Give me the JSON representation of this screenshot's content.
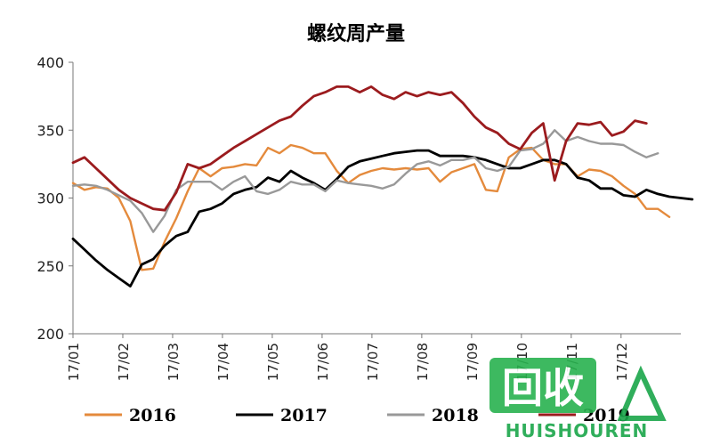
{
  "chart_data": {
    "type": "line",
    "title": "螺纹周产量",
    "xlabel": "",
    "ylabel": "",
    "ylim": [
      200,
      400
    ],
    "yticks": [
      200,
      250,
      300,
      350,
      400
    ],
    "xticks": [
      "17/01",
      "17/02",
      "17/03",
      "17/04",
      "17/05",
      "17/06",
      "17/07",
      "17/08",
      "17/09",
      "17/10",
      "17/11",
      "17/12"
    ],
    "x_unit": "week",
    "legend_position": "bottom",
    "grid": false,
    "series": [
      {
        "name": "2016",
        "color": "#E48A3C",
        "values": [
          311,
          306,
          308,
          307,
          300,
          283,
          247,
          248,
          268,
          285,
          305,
          322,
          316,
          322,
          323,
          325,
          324,
          337,
          333,
          339,
          337,
          333,
          333,
          320,
          311,
          317,
          320,
          322,
          321,
          322,
          321,
          322,
          312,
          319,
          322,
          325,
          306,
          305,
          330,
          336,
          337,
          328,
          325,
          325,
          316,
          321,
          320,
          316,
          309,
          303,
          292,
          292,
          286
        ]
      },
      {
        "name": "2017",
        "color": "#000000",
        "values": [
          270,
          262,
          254,
          247,
          241,
          235,
          251,
          255,
          265,
          272,
          275,
          290,
          292,
          296,
          303,
          306,
          308,
          315,
          312,
          320,
          315,
          311,
          306,
          314,
          323,
          327,
          329,
          331,
          333,
          334,
          335,
          335,
          331,
          331,
          331,
          330,
          328,
          325,
          322,
          322,
          325,
          328,
          328,
          325,
          315,
          313,
          307,
          307,
          302,
          301,
          306,
          303,
          301,
          300,
          299
        ]
      },
      {
        "name": "2018",
        "color": "#999999",
        "values": [
          309,
          310,
          309,
          306,
          302,
          298,
          289,
          275,
          287,
          306,
          312,
          312,
          312,
          306,
          312,
          316,
          305,
          303,
          306,
          312,
          310,
          310,
          305,
          313,
          311,
          310,
          309,
          307,
          310,
          318,
          325,
          327,
          324,
          328,
          328,
          330,
          322,
          320,
          323,
          335,
          336,
          340,
          350,
          342,
          345,
          342,
          340,
          340,
          339,
          334,
          330,
          333
        ]
      },
      {
        "name": "2019",
        "color": "#9B1B1E",
        "values": [
          326,
          330,
          322,
          314,
          306,
          300,
          296,
          292,
          291,
          304,
          325,
          322,
          325,
          331,
          337,
          342,
          347,
          352,
          357,
          360,
          368,
          375,
          378,
          382,
          382,
          378,
          382,
          376,
          373,
          378,
          375,
          378,
          376,
          378,
          370,
          360,
          352,
          348,
          340,
          336,
          348,
          355,
          313,
          342,
          355,
          354,
          356,
          346,
          349,
          357,
          355
        ]
      }
    ]
  },
  "watermark": {
    "main_text": "回收",
    "sub_text": "HUISHOUREN"
  }
}
